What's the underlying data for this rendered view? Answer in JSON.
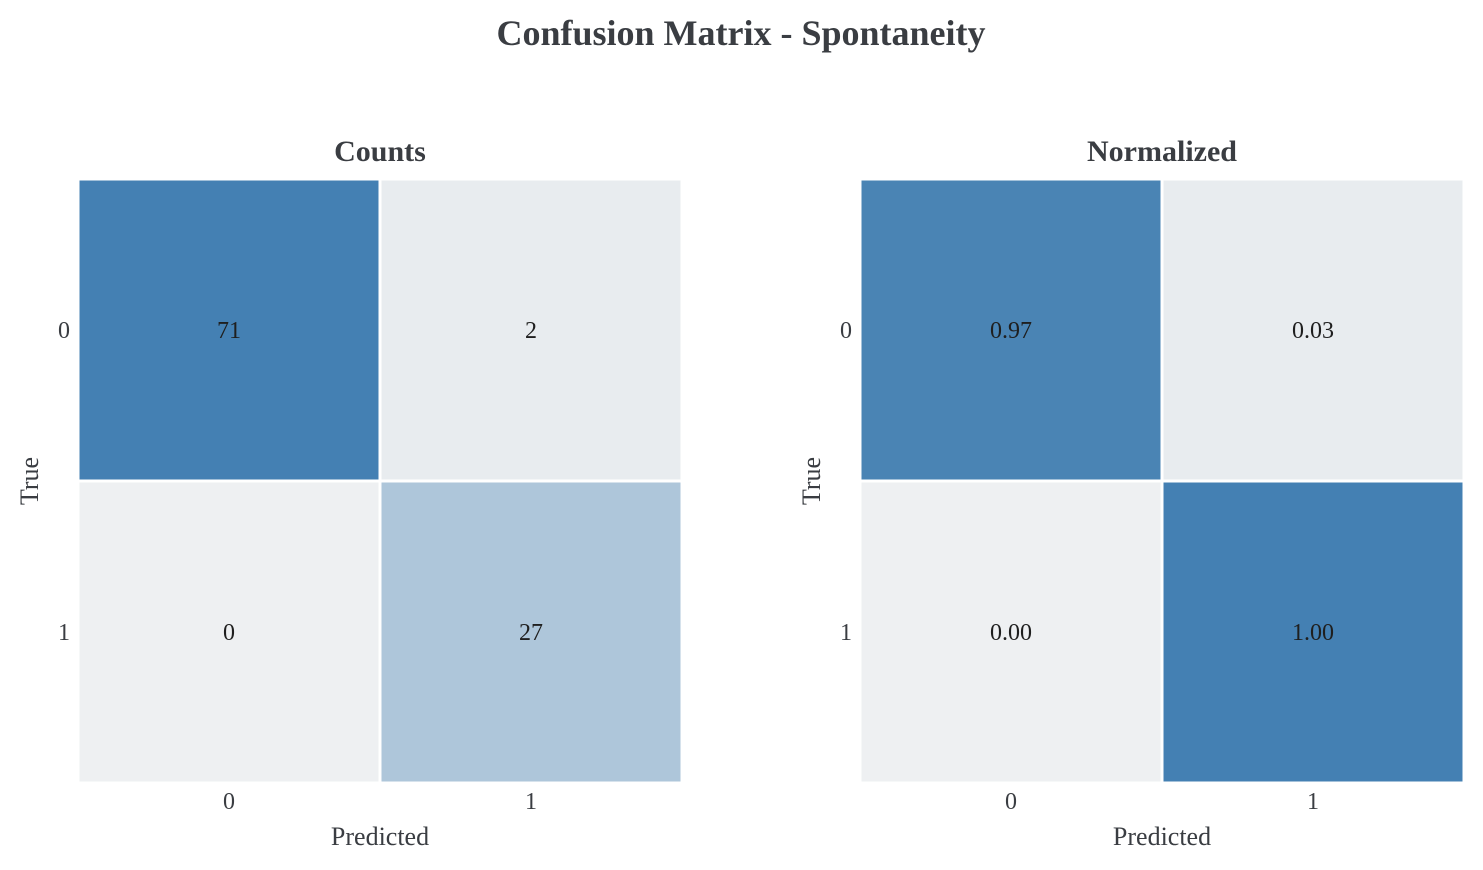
{
  "title": "Confusion Matrix - Spontaneity",
  "chart_data": [
    {
      "type": "heatmap",
      "title": "Counts",
      "xlabel": "Predicted",
      "ylabel": "True",
      "x_categories": [
        "0",
        "1"
      ],
      "y_categories": [
        "0",
        "1"
      ],
      "values": [
        [
          71,
          2
        ],
        [
          0,
          27
        ]
      ],
      "labels": [
        [
          "71",
          "2"
        ],
        [
          "0",
          "27"
        ]
      ],
      "colors": [
        [
          "#4480b3",
          "#e8ecef"
        ],
        [
          "#eef0f2",
          "#aec6da"
        ]
      ]
    },
    {
      "type": "heatmap",
      "title": "Normalized",
      "xlabel": "Predicted",
      "ylabel": "True",
      "x_categories": [
        "0",
        "1"
      ],
      "y_categories": [
        "0",
        "1"
      ],
      "values": [
        [
          0.97,
          0.03
        ],
        [
          0.0,
          1.0
        ]
      ],
      "labels": [
        [
          "0.97",
          "0.03"
        ],
        [
          "0.00",
          "1.00"
        ]
      ],
      "colors": [
        [
          "#4a84b4",
          "#e8ecef"
        ],
        [
          "#eef0f2",
          "#4480b3"
        ]
      ]
    }
  ]
}
